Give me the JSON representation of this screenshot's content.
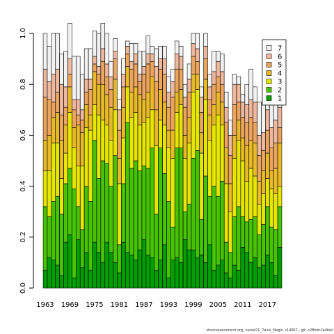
{
  "footer": "stockassessment.org, nscod21_7plus_Magic, r14067 , git: c28bdc2a4fad",
  "chart_data": {
    "type": "bar",
    "stacked": true,
    "x": [
      1963,
      1964,
      1965,
      1966,
      1967,
      1968,
      1969,
      1970,
      1971,
      1972,
      1973,
      1974,
      1975,
      1976,
      1977,
      1978,
      1979,
      1980,
      1981,
      1982,
      1983,
      1984,
      1985,
      1986,
      1987,
      1988,
      1989,
      1990,
      1991,
      1992,
      1993,
      1994,
      1995,
      1996,
      1997,
      1998,
      1999,
      2000,
      2001,
      2002,
      2003,
      2004,
      2005,
      2006,
      2007,
      2008,
      2009,
      2010,
      2011,
      2012,
      2013,
      2014,
      2015,
      2016,
      2017,
      2018,
      2019,
      2020
    ],
    "x_tick_labels": [
      "1963",
      "1969",
      "1975",
      "1981",
      "1987",
      "1993",
      "1999",
      "2005",
      "2011",
      "2017"
    ],
    "ylim": [
      0,
      1
    ],
    "y_ticks": [
      "0.0",
      "0.2",
      "0.4",
      "0.6",
      "0.8",
      "1.0"
    ],
    "legend": {
      "position": "top-right",
      "entries": [
        "7",
        "6",
        "5",
        "4",
        "3",
        "2",
        "1"
      ]
    },
    "series": [
      {
        "name": "1",
        "color": "#009e00",
        "values": [
          0.07,
          0.12,
          0.11,
          0.09,
          0.05,
          0.18,
          0.21,
          0.04,
          0.19,
          0.08,
          0.14,
          0.07,
          0.18,
          0.14,
          0.1,
          0.18,
          0.14,
          0.1,
          0.06,
          0.18,
          0.14,
          0.13,
          0.11,
          0.15,
          0.19,
          0.13,
          0.12,
          0.07,
          0.11,
          0.17,
          0.04,
          0.11,
          0.12,
          0.1,
          0.19,
          0.15,
          0.15,
          0.12,
          0.13,
          0.1,
          0.17,
          0.07,
          0.09,
          0.11,
          0.06,
          0.04,
          0.09,
          0.07,
          0.16,
          0.14,
          0.1,
          0.12,
          0.08,
          0.09,
          0.13,
          0.1,
          0.05,
          0.16
        ]
      },
      {
        "name": "2",
        "color": "#47c300",
        "values": [
          0.25,
          0.16,
          0.23,
          0.27,
          0.24,
          0.23,
          0.26,
          0.35,
          0.13,
          0.15,
          0.26,
          0.27,
          0.4,
          0.29,
          0.4,
          0.31,
          0.26,
          0.42,
          0.11,
          0.23,
          0.51,
          0.34,
          0.39,
          0.31,
          0.29,
          0.34,
          0.43,
          0.22,
          0.44,
          0.28,
          0.3,
          0.13,
          0.43,
          0.45,
          0.11,
          0.18,
          0.36,
          0.42,
          0.14,
          0.34,
          0.19,
          0.33,
          0.27,
          0.31,
          0.12,
          0.1,
          0.19,
          0.25,
          0.12,
          0.12,
          0.17,
          0.16,
          0.13,
          0.16,
          0.19,
          0.14,
          0.18,
          0.16
        ]
      },
      {
        "name": "3",
        "color": "#e6e600",
        "values": [
          0.14,
          0.18,
          0.23,
          0.21,
          0.14,
          0.12,
          0.22,
          0.16,
          0.16,
          0.25,
          0.23,
          0.28,
          0.14,
          0.25,
          0.16,
          0.15,
          0.18,
          0.18,
          0.24,
          0.18,
          0.14,
          0.2,
          0.19,
          0.18,
          0.17,
          0.2,
          0.15,
          0.27,
          0.11,
          0.19,
          0.21,
          0.27,
          0.14,
          0.17,
          0.21,
          0.24,
          0.26,
          0.24,
          0.26,
          0.3,
          0.22,
          0.24,
          0.32,
          0.22,
          0.23,
          0.16,
          0.23,
          0.26,
          0.22,
          0.16,
          0.2,
          0.16,
          0.12,
          0.12,
          0.11,
          0.15,
          0.14,
          0.08
        ]
      },
      {
        "name": "4",
        "color": "#e8ba2a",
        "values": [
          0.12,
          0.14,
          0.1,
          0.12,
          0.15,
          0.11,
          0.1,
          0.08,
          0.16,
          0.13,
          0.09,
          0.06,
          0.13,
          0.12,
          0.14,
          0.12,
          0.13,
          0.12,
          0.1,
          0.12,
          0.08,
          0.1,
          0.1,
          0.12,
          0.09,
          0.1,
          0.13,
          0.14,
          0.12,
          0.09,
          0.07,
          0.11,
          0.08,
          0.06,
          0.09,
          0.1,
          0.07,
          0.06,
          0.08,
          0.08,
          0.1,
          0.08,
          0.09,
          0.09,
          0.14,
          0.11,
          0.09,
          0.08,
          0.09,
          0.14,
          0.11,
          0.13,
          0.09,
          0.09,
          0.1,
          0.07,
          0.1,
          0.17
        ]
      },
      {
        "name": "5",
        "color": "#eba55e",
        "values": [
          0.17,
          0.14,
          0.06,
          0.08,
          0.1,
          0.07,
          0.05,
          0.07,
          0.04,
          0.05,
          0.05,
          0.1,
          0.03,
          0.04,
          0.09,
          0.07,
          0.07,
          0.08,
          0.11,
          0.08,
          0.05,
          0.09,
          0.09,
          0.05,
          0.1,
          0.11,
          0.06,
          0.11,
          0.08,
          0.11,
          0.09,
          0.13,
          0.09,
          0.08,
          0.11,
          0.1,
          0.07,
          0.05,
          0.08,
          0.08,
          0.06,
          0.08,
          0.06,
          0.07,
          0.1,
          0.11,
          0.12,
          0.07,
          0.08,
          0.09,
          0.09,
          0.08,
          0.1,
          0.08,
          0.09,
          0.09,
          0.1,
          0.06
        ]
      },
      {
        "name": "6",
        "color": "#eeb89e",
        "values": [
          0.11,
          0.07,
          0.11,
          0.09,
          0.12,
          0.08,
          0.06,
          0.04,
          0.06,
          0.04,
          0.05,
          0.04,
          0.03,
          0.03,
          0.05,
          0.05,
          0.05,
          0.03,
          0.08,
          0.05,
          0.03,
          0.03,
          0.04,
          0.03,
          0.03,
          0.04,
          0.03,
          0.06,
          0.04,
          0.06,
          0.06,
          0.06,
          0.06,
          0.05,
          0.04,
          0.05,
          0.05,
          0.05,
          0.06,
          0.05,
          0.05,
          0.05,
          0.06,
          0.05,
          0.06,
          0.08,
          0.08,
          0.07,
          0.06,
          0.07,
          0.07,
          0.08,
          0.08,
          0.07,
          0.08,
          0.08,
          0.09,
          0.08
        ]
      },
      {
        "name": "7",
        "color": "#f2f2f2",
        "values": [
          0.14,
          0.14,
          0.16,
          0.14,
          0.12,
          0.14,
          0.14,
          0.17,
          0.17,
          0.14,
          0.12,
          0.12,
          0.1,
          0.13,
          0.1,
          0.12,
          0.06,
          0.05,
          0.04,
          0.06,
          0.02,
          0.07,
          0.04,
          0.09,
          0.06,
          0.07,
          0.03,
          0.07,
          0.05,
          0.05,
          0.06,
          0.05,
          0.05,
          0.04,
          0.05,
          0.06,
          0.04,
          0.06,
          0.04,
          0.05,
          0.05,
          0.08,
          0.04,
          0.07,
          0.06,
          0.06,
          0.04,
          0.03,
          0.03,
          0.08,
          0.12,
          0.06,
          0.13,
          0.12,
          0.1,
          0.11,
          0.12,
          0.15
        ]
      }
    ]
  }
}
